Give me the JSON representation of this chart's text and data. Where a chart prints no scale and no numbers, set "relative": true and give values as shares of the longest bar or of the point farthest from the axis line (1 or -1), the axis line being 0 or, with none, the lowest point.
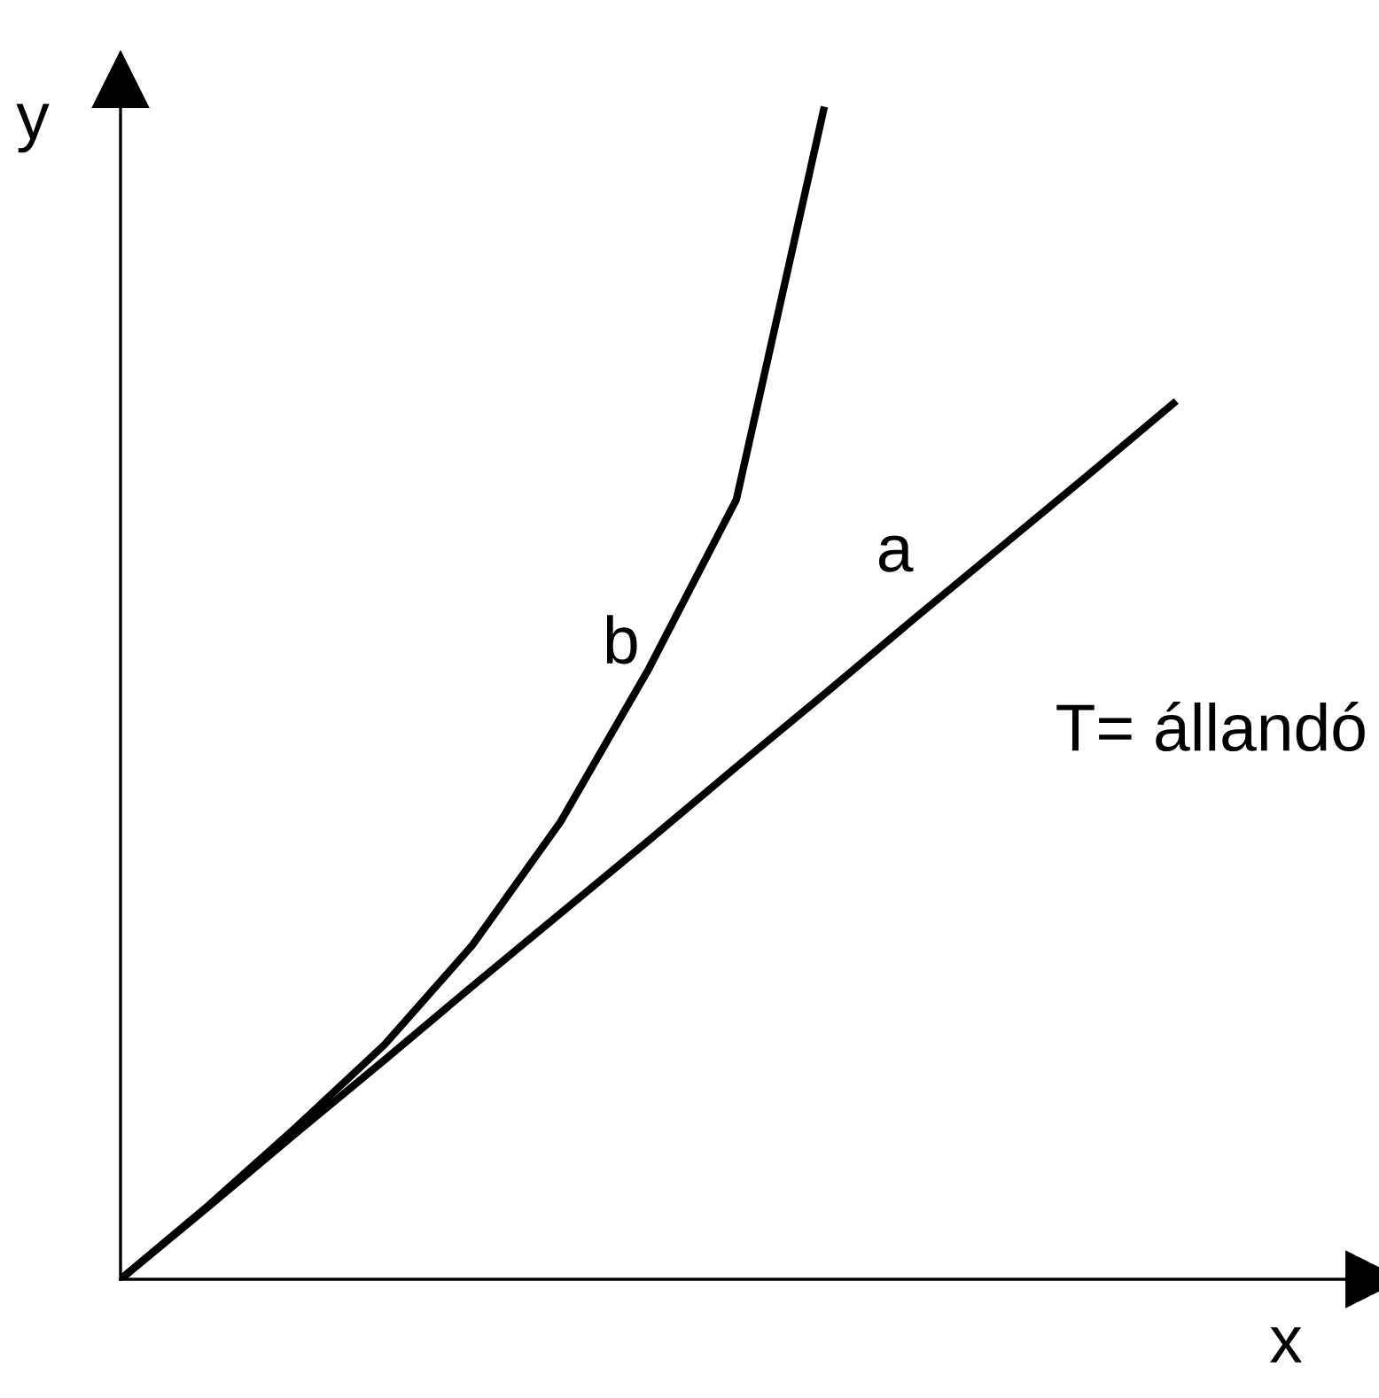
{
  "chart_data": {
    "type": "line",
    "relative": true,
    "xlabel": "x",
    "ylabel": "y",
    "legend": false,
    "marker": "none",
    "line_style": "solid",
    "annotations": [
      "T= állandó"
    ],
    "categories": [
      null,
      null,
      null,
      null,
      null,
      null,
      null,
      null,
      null,
      null,
      null,
      null,
      null
    ],
    "series": [
      {
        "name": "b",
        "color": "#000000",
        "values": [
          0,
          0.063,
          0.13,
          0.2,
          0.285,
          0.39,
          0.52,
          0.665,
          1.0,
          null,
          null,
          null,
          null
        ]
      },
      {
        "name": "a",
        "color": "#000000",
        "values": [
          0,
          0.062,
          0.125,
          0.187,
          0.25,
          0.312,
          0.374,
          0.437,
          0.499,
          0.562,
          0.624,
          0.686,
          0.749
        ]
      }
    ]
  }
}
